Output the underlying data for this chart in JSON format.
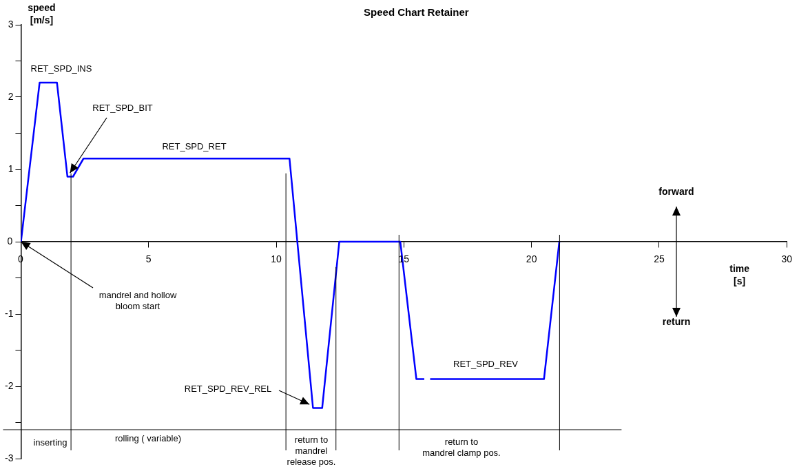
{
  "chart_data": {
    "type": "line",
    "title": "Speed Chart Retainer",
    "xlabel": "time\n[s]",
    "ylabel": "speed\n[m/s]",
    "x": [
      0,
      0.73,
      1.41,
      1.82,
      2.04,
      2.45,
      10.52,
      11.44,
      11.8,
      12.47,
      14.86,
      15.49,
      15.8,
      15.9,
      16.03,
      20.49,
      21.09
    ],
    "series": [
      {
        "color": "#0000ff",
        "values": [
          0,
          2.2,
          2.2,
          0.9,
          0.9,
          1.15,
          1.15,
          -2.3,
          -2.3,
          0,
          0,
          -1.9,
          -1.9,
          null,
          -1.9,
          -1.9,
          0
        ]
      }
    ],
    "xlim": [
      0,
      30
    ],
    "xticks": [
      0,
      5,
      10,
      15,
      20,
      25,
      30
    ],
    "ylim": [
      -3,
      3
    ],
    "yticks": [
      -3,
      {
        "value": -2.5,
        "label": null
      },
      -2,
      {
        "value": -1.5,
        "label": null
      },
      -1,
      {
        "value": -0.5,
        "label": null
      },
      0,
      {
        "value": 0.5,
        "label": null
      },
      1,
      {
        "value": 1.5,
        "label": null
      },
      2,
      {
        "value": 2.5,
        "label": null
      },
      3
    ],
    "grid": false,
    "legend": false,
    "marker": "none",
    "line_style": "solid",
    "ref_lines": [
      {
        "axis": "x",
        "value": 1.96,
        "color": "#000000"
      },
      {
        "axis": "x",
        "value": 10.38,
        "color": "#000000"
      },
      {
        "axis": "x",
        "value": 12.34,
        "color": "#000000"
      },
      {
        "axis": "x",
        "value": 14.81,
        "color": "#000000"
      },
      {
        "axis": "x",
        "value": 21.1,
        "color": "#000000"
      },
      {
        "axis": "y",
        "value": -2.6,
        "color": "#000000"
      }
    ],
    "annotations": [
      "RET_SPD_INS",
      {
        "text": "RET_SPD_BIT",
        "x": 1.92,
        "y": 0.95
      },
      "RET_SPD_RET",
      {
        "text": "mandrel and hollow\nbloom start",
        "x": 0,
        "y": 0
      },
      {
        "text": "RET_SPD_REV_REL",
        "x": 11.3,
        "y": -2.25
      },
      "RET_SPD_REV",
      "inserting",
      "rolling ( variable)",
      "return to\nmandrel\nrelease pos.",
      "return to\nmandrel clamp pos.",
      "forward",
      "return"
    ]
  }
}
